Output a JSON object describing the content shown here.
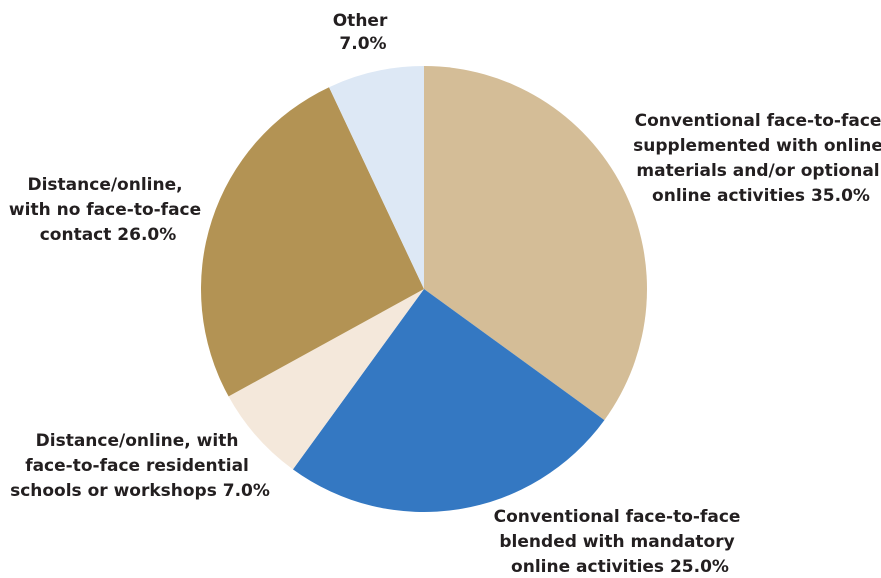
{
  "chart_data": {
    "type": "pie",
    "title": "",
    "slices": [
      {
        "value": 35.0,
        "color": "#d4bd97",
        "label_lines": [
          "Conventional face-to-face",
          "supplemented with online",
          "materials and/or optional",
          "online activities 35.0%"
        ]
      },
      {
        "value": 25.0,
        "color": "#3478c2",
        "label_lines": [
          "Conventional face-to-face",
          "blended with mandatory",
          "online activities 25.0%"
        ]
      },
      {
        "value": 7.0,
        "color": "#f4e8db",
        "label_lines": [
          "Distance/online, with",
          "face-to-face residential",
          "schools or workshops 7.0%"
        ]
      },
      {
        "value": 26.0,
        "color": "#b39354",
        "label_lines": [
          "Distance/online,",
          "with no face-to-face",
          "contact 26.0%"
        ]
      },
      {
        "value": 7.0,
        "color": "#dde8f5",
        "label_lines": [
          "Other",
          "7.0%"
        ]
      }
    ]
  }
}
